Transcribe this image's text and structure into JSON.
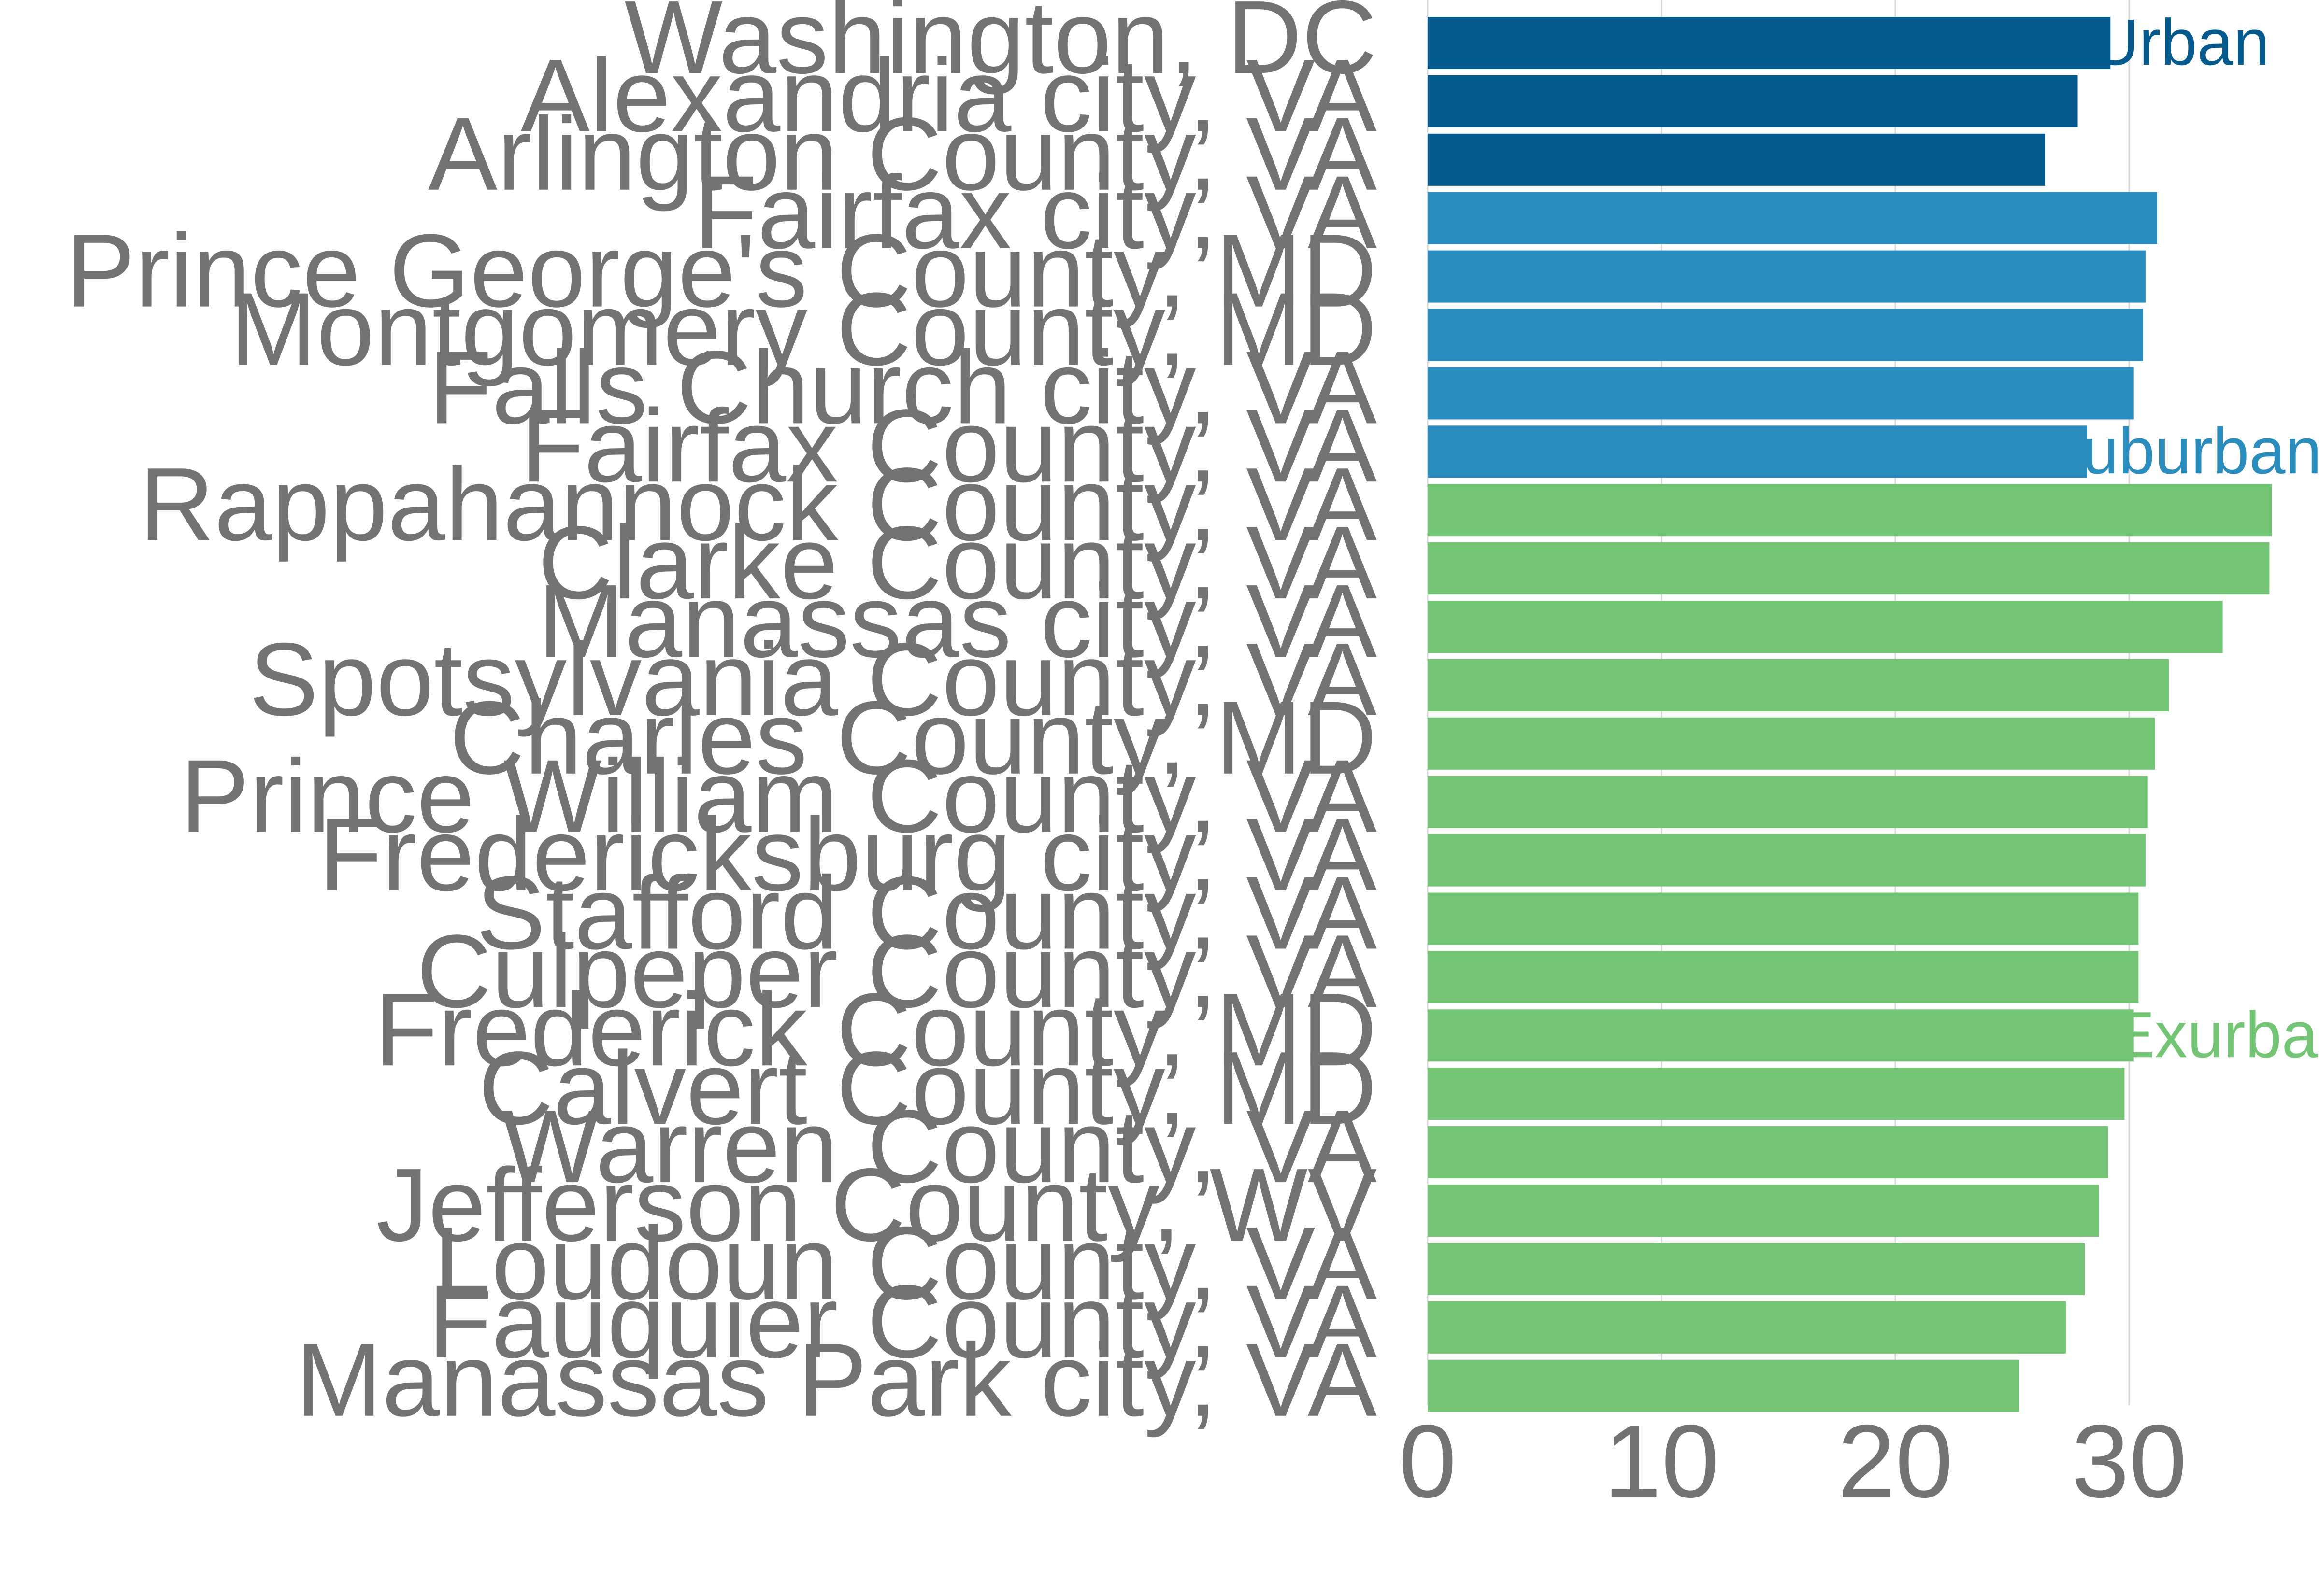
{
  "chart_data": {
    "type": "bar",
    "orientation": "horizontal",
    "title": "",
    "xlabel": "",
    "ylabel": "",
    "xlim": [
      0,
      36.5
    ],
    "x_ticks": [
      "0",
      "10",
      "20",
      "30"
    ],
    "grid": true,
    "legend": "none",
    "colors": {
      "Urban": "#045a8d",
      "Suburban": "#2b8cbe",
      "Exurban": "#74c476",
      "text": "#737373",
      "grid": "#d9d9d9"
    },
    "groups": [
      {
        "name": "Urban",
        "label": "Urban",
        "categories": [
          "Washington, DC",
          "Alexandria city, VA",
          "Arlington County, VA"
        ],
        "values": [
          29.2,
          27.8,
          26.4
        ]
      },
      {
        "name": "Suburban",
        "label": "Suburban",
        "categories": [
          "Fairfax city, VA",
          "Prince George's County, MD",
          "Montgomery County, MD",
          "Falls Church city, VA",
          "Fairfax County, VA"
        ],
        "values": [
          31.2,
          30.7,
          30.6,
          30.2,
          28.2
        ]
      },
      {
        "name": "Exurban",
        "label": "Exurban",
        "categories": [
          "Rappahannock County, VA",
          "Clarke County, VA",
          "Manassas city, VA",
          "Spotsylvania County, VA",
          "Charles County, MD",
          "Prince William County, VA",
          "Fredericksburg city, VA",
          "Stafford County, VA",
          "Culpeper County, VA",
          "Frederick County, MD",
          "Calvert County, MD",
          "Warren County, VA",
          "Jefferson County, WV",
          "Loudoun County, VA",
          "Fauquier County, VA",
          "Manassas Park city, VA"
        ],
        "values": [
          36.1,
          36.0,
          34.0,
          31.7,
          31.1,
          30.8,
          30.7,
          30.4,
          30.4,
          30.2,
          29.8,
          29.1,
          28.7,
          28.1,
          27.3,
          25.3
        ]
      }
    ]
  }
}
